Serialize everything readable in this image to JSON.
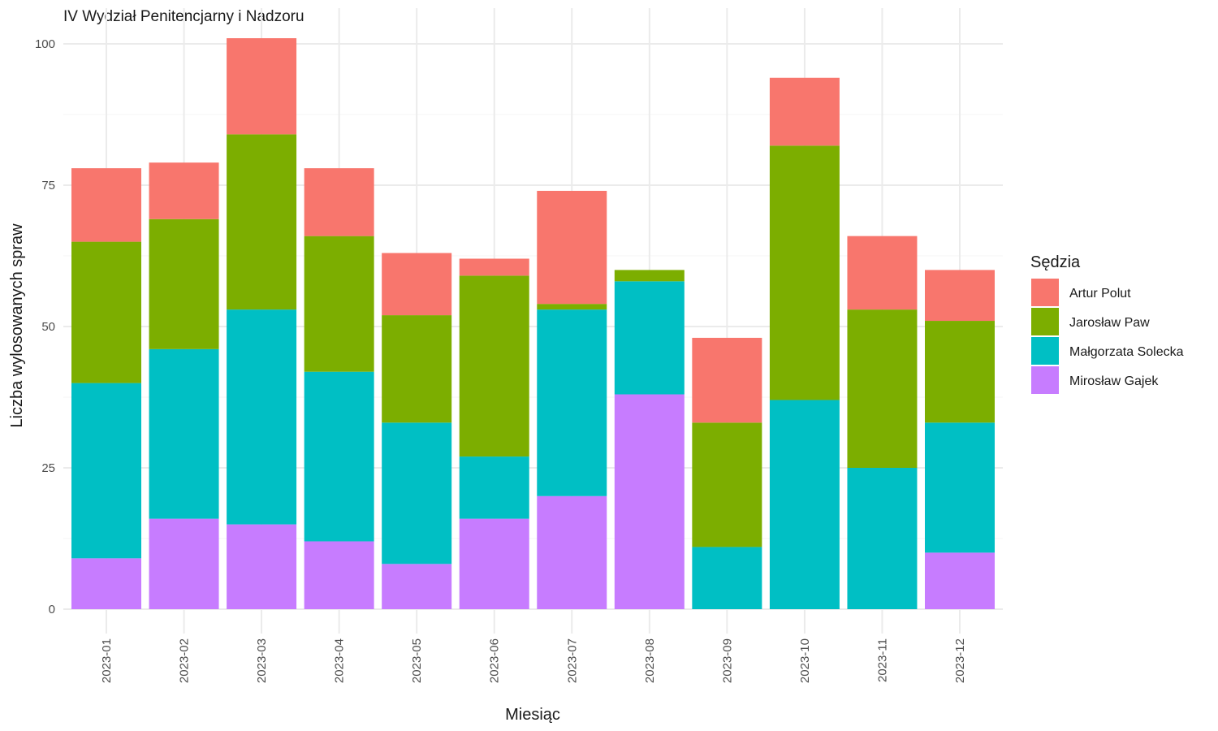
{
  "chart_data": {
    "type": "bar",
    "stacked": true,
    "title": "IV Wydział Penitencjarny i Nadzoru",
    "xlabel": "Miesiąc",
    "ylabel": "Liczba wylosowanych spraw",
    "ylim": [
      0,
      105
    ],
    "yticks": [
      0,
      25,
      50,
      75,
      100
    ],
    "grid": true,
    "legend": {
      "title": "Sędzia",
      "position": "right"
    },
    "categories": [
      "2023-01",
      "2023-02",
      "2023-03",
      "2023-04",
      "2023-05",
      "2023-06",
      "2023-07",
      "2023-08",
      "2023-09",
      "2023-10",
      "2023-11",
      "2023-12"
    ],
    "series": [
      {
        "name": "Mirosław Gajek",
        "color": "#C77CFF",
        "values": [
          9,
          16,
          15,
          12,
          8,
          16,
          20,
          38,
          0,
          0,
          0,
          10
        ]
      },
      {
        "name": "Małgorzata Solecka",
        "color": "#00BFC4",
        "values": [
          31,
          30,
          38,
          30,
          25,
          11,
          33,
          20,
          11,
          37,
          25,
          23
        ]
      },
      {
        "name": "Jarosław Paw",
        "color": "#7CAE00",
        "values": [
          25,
          23,
          31,
          24,
          19,
          32,
          1,
          2,
          22,
          45,
          28,
          18
        ]
      },
      {
        "name": "Artur Polut",
        "color": "#F8766D",
        "values": [
          13,
          10,
          17,
          12,
          11,
          3,
          20,
          0,
          15,
          12,
          13,
          9
        ]
      }
    ],
    "legend_order": [
      "Artur Polut",
      "Jarosław Paw",
      "Małgorzata Solecka",
      "Mirosław Gajek"
    ]
  }
}
